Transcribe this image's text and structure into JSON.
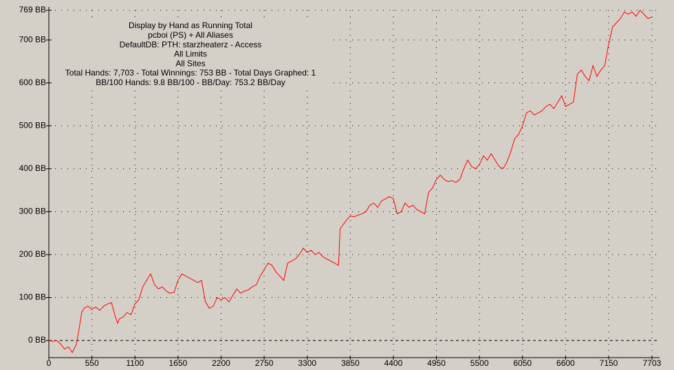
{
  "chart_data": {
    "type": "line",
    "annotations": [
      "Display by Hand as Running Total",
      "pcboi (PS) + All Aliases",
      "DefaultDB: PTH: starzheaterz - Access",
      "All Limits",
      "All Sites",
      "Total Hands: 7,703 - Total Winnings: 753 BB - Total Days Graphed: 1",
      "BB/100 Hands: 9.8 BB/100 - BB/Day: 753.2 BB/Day"
    ],
    "color": "#ff0000",
    "grid": true,
    "xlim": [
      0,
      7800
    ],
    "ylim": [
      -40,
      769
    ],
    "xticks": [
      0,
      550,
      1100,
      1650,
      2200,
      2750,
      3300,
      3850,
      4400,
      4950,
      5500,
      6050,
      6600,
      7150,
      7703
    ],
    "yticks": [
      {
        "value": 0,
        "label": "0 BB"
      },
      {
        "value": 100,
        "label": "100 BB"
      },
      {
        "value": 200,
        "label": "200 BB"
      },
      {
        "value": 300,
        "label": "300 BB"
      },
      {
        "value": 400,
        "label": "400 BB"
      },
      {
        "value": 500,
        "label": "500 BB"
      },
      {
        "value": 600,
        "label": "600 BB"
      },
      {
        "value": 700,
        "label": "700 BB"
      },
      {
        "value": 769,
        "label": "769 BB"
      }
    ],
    "x": [
      0,
      50,
      100,
      150,
      200,
      250,
      300,
      350,
      380,
      420,
      450,
      500,
      550,
      600,
      650,
      700,
      750,
      800,
      850,
      880,
      900,
      950,
      1000,
      1050,
      1100,
      1150,
      1200,
      1250,
      1300,
      1350,
      1400,
      1450,
      1500,
      1550,
      1600,
      1650,
      1700,
      1750,
      1800,
      1850,
      1900,
      1950,
      2000,
      2050,
      2100,
      2150,
      2200,
      2250,
      2300,
      2350,
      2400,
      2450,
      2500,
      2550,
      2600,
      2650,
      2700,
      2750,
      2800,
      2850,
      2900,
      2950,
      3000,
      3050,
      3100,
      3150,
      3200,
      3250,
      3300,
      3350,
      3400,
      3450,
      3500,
      3550,
      3600,
      3650,
      3700,
      3720,
      3800,
      3850,
      3900,
      3950,
      4000,
      4050,
      4100,
      4150,
      4200,
      4250,
      4300,
      4350,
      4400,
      4450,
      4500,
      4550,
      4600,
      4650,
      4700,
      4750,
      4800,
      4850,
      4900,
      4950,
      5000,
      5050,
      5100,
      5150,
      5200,
      5250,
      5300,
      5350,
      5400,
      5450,
      5500,
      5550,
      5600,
      5650,
      5700,
      5750,
      5800,
      5850,
      5900,
      5950,
      6000,
      6050,
      6100,
      6150,
      6200,
      6250,
      6300,
      6350,
      6400,
      6450,
      6500,
      6550,
      6600,
      6650,
      6700,
      6750,
      6800,
      6850,
      6900,
      6950,
      7000,
      7050,
      7100,
      7150,
      7200,
      7250,
      7300,
      7350,
      7400,
      7450,
      7500,
      7550,
      7600,
      7650,
      7703
    ],
    "values": [
      0,
      -2,
      0,
      -8,
      -20,
      -15,
      -28,
      -10,
      20,
      65,
      75,
      80,
      72,
      78,
      70,
      80,
      85,
      88,
      55,
      40,
      50,
      55,
      65,
      60,
      85,
      95,
      125,
      140,
      155,
      130,
      120,
      125,
      115,
      110,
      112,
      140,
      155,
      150,
      145,
      140,
      135,
      140,
      90,
      75,
      80,
      100,
      95,
      100,
      90,
      105,
      120,
      110,
      115,
      118,
      125,
      130,
      150,
      165,
      180,
      175,
      160,
      150,
      140,
      180,
      185,
      190,
      200,
      215,
      205,
      210,
      200,
      205,
      195,
      190,
      185,
      180,
      175,
      260,
      280,
      290,
      288,
      292,
      295,
      300,
      315,
      320,
      310,
      325,
      330,
      335,
      330,
      295,
      300,
      320,
      310,
      315,
      305,
      300,
      295,
      345,
      355,
      375,
      385,
      375,
      370,
      372,
      368,
      375,
      400,
      420,
      405,
      400,
      410,
      430,
      420,
      435,
      420,
      405,
      400,
      415,
      440,
      470,
      480,
      500,
      530,
      535,
      525,
      530,
      535,
      545,
      550,
      540,
      555,
      570,
      545,
      550,
      555,
      620,
      630,
      615,
      605,
      640,
      615,
      630,
      640,
      690,
      730,
      740,
      750,
      765,
      760,
      765,
      755,
      769,
      760,
      750,
      753
    ]
  }
}
